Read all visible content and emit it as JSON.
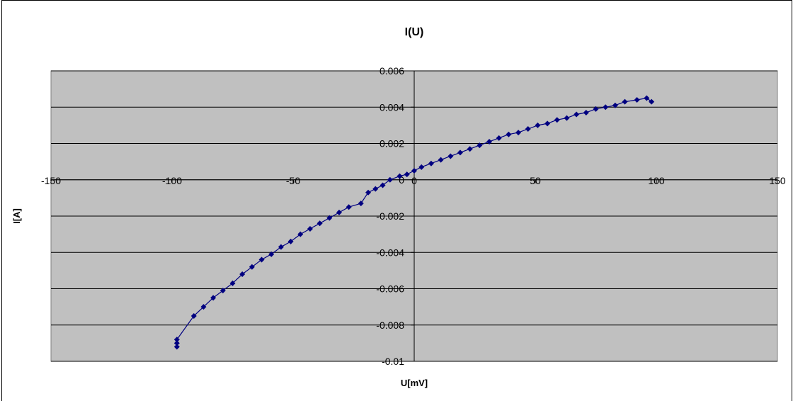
{
  "chart_data": {
    "type": "scatter",
    "title": "I(U)",
    "xlabel": "U[mV]",
    "ylabel": "I[A]",
    "xlim": [
      -150,
      150
    ],
    "ylim": [
      -0.01,
      0.006
    ],
    "x_ticks": [
      -150,
      -100,
      -50,
      0,
      50,
      100,
      150
    ],
    "y_ticks": [
      0.006,
      0.004,
      0.002,
      0,
      -0.002,
      -0.004,
      -0.006,
      -0.008,
      -0.01
    ],
    "x_tick_labels": [
      "-150",
      "-100",
      "-50",
      "0",
      "50",
      "100",
      "150"
    ],
    "y_tick_labels": [
      "0.006",
      "0.004",
      "0.002",
      "0",
      "-0.002",
      "-0.004",
      "-0.006",
      "-0.008",
      "-0.01"
    ],
    "grid": "horizontal",
    "plot_background": "#c0c0c0",
    "series_color": "#000080",
    "marker": "diamond",
    "connected": true,
    "series": [
      {
        "x": [
          -98,
          -98,
          -98,
          -91,
          -87,
          -83,
          -79,
          -75,
          -71,
          -67,
          -63,
          -59,
          -55,
          -51,
          -47,
          -43,
          -39,
          -35,
          -31,
          -27,
          -22,
          -19,
          -16,
          -13,
          -10,
          -6,
          -3,
          0,
          3,
          7,
          11,
          15,
          19,
          23,
          27,
          31,
          35,
          39,
          43,
          47,
          51,
          55,
          59,
          63,
          67,
          71,
          75,
          79,
          83,
          87,
          92,
          96,
          98
        ],
        "y": [
          -0.0092,
          -0.009,
          -0.0088,
          -0.0075,
          -0.007,
          -0.0065,
          -0.0061,
          -0.0057,
          -0.0052,
          -0.0048,
          -0.0044,
          -0.0041,
          -0.0037,
          -0.0034,
          -0.003,
          -0.0027,
          -0.0024,
          -0.0021,
          -0.0018,
          -0.0015,
          -0.0013,
          -0.0007,
          -0.0005,
          -0.0003,
          0.0,
          0.0002,
          0.0003,
          0.0005,
          0.0007,
          0.0009,
          0.0011,
          0.0013,
          0.0015,
          0.0017,
          0.0019,
          0.0021,
          0.0023,
          0.0025,
          0.0026,
          0.0028,
          0.003,
          0.0031,
          0.0033,
          0.0034,
          0.0036,
          0.0037,
          0.0039,
          0.004,
          0.0041,
          0.0043,
          0.0044,
          0.0045,
          0.0043
        ]
      }
    ]
  }
}
